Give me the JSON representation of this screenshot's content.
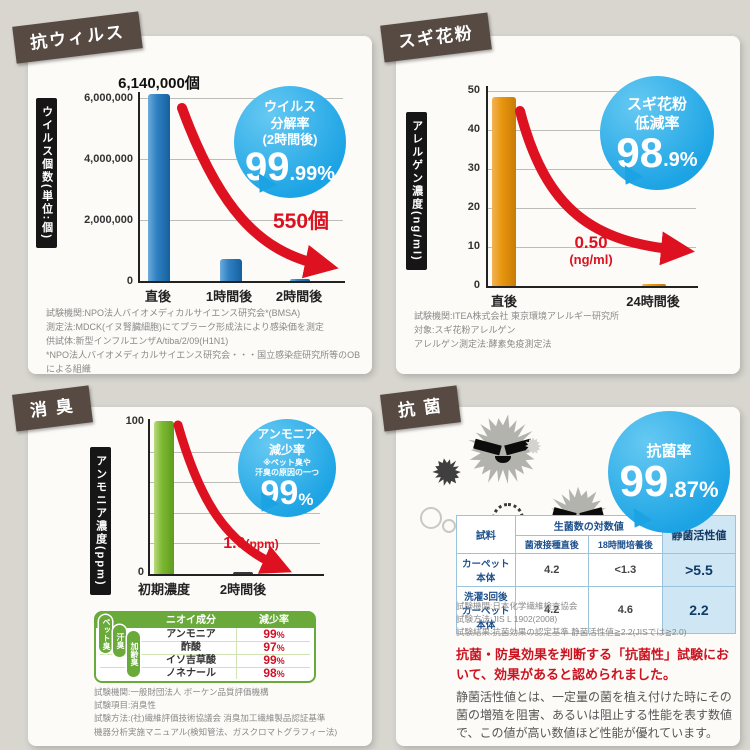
{
  "colors": {
    "accent_blue": "#1ba3e4",
    "arrow_red": "#dd1120",
    "tag_brown": "#574a43",
    "bar_blue": "#2f80c2",
    "bar_orange": "#e8960e",
    "bar_green": "#7db832",
    "table_green": "#6aaa3a"
  },
  "cards": {
    "av": {
      "tag": "抗ウィルス",
      "ylabel": "ウイルス個数(単位:個)",
      "yticks": [
        "6,000,000",
        "4,000,000",
        "2,000,000",
        "0"
      ],
      "bar_label": "6,140,000個",
      "x1": "直後",
      "x2": "1時間後",
      "x3": "2時間後",
      "arrow_label": "550個",
      "bubble": {
        "l1": "ウイルス",
        "l2": "分解率",
        "l3": "(2時間後)",
        "big": "99",
        "small": ".99%"
      },
      "notes": [
        "試験機関:NPO法人バイオメディカルサイエンス研究会*(BMSA)",
        "測定法:MDCK(イヌ腎臓細胞)にてプラーク形成法により感染価を測定",
        "供試体:新型インフルエンザA/tiba/2/09(H1N1)",
        "*NPO法人バイオメディカルサイエンス研究会・・・国立感染症研究所等のOBによる組織"
      ]
    },
    "po": {
      "tag": "スギ花粉",
      "ylabel": "アレルゲン濃度(ng/ml)",
      "yticks": [
        "50",
        "40",
        "30",
        "20",
        "10",
        "0"
      ],
      "x1": "直後",
      "x2": "24時間後",
      "ann1": "0.50",
      "ann2": "(ng/ml)",
      "bubble": {
        "l1": "スギ花粉",
        "l2": "低減率",
        "big": "98",
        "small": ".9%"
      },
      "notes": [
        "試験機関:ITEA株式会社 東京環境アレルギー研究所",
        "対象:スギ花粉アレルゲン",
        "アレルゲン測定法:酵素免疫測定法"
      ]
    },
    "od": {
      "tag": "消 臭",
      "ylabel": "アンモニア濃度(ppm)",
      "ytick_top": "100",
      "ytick_bottom": "0",
      "x1": "初期濃度",
      "x2": "2時間後",
      "ann1": "1.0",
      "ann2": "(ppm)",
      "bubble": {
        "l1": "アンモニア",
        "l2": "減少率",
        "t1": "※ペット臭や",
        "t2": "汗臭の原因の一つ",
        "big": "99",
        "small": "%"
      },
      "table": {
        "h_component": "ニオイ成分",
        "h_rate": "減少率",
        "side": [
          "ペット臭",
          "汗臭",
          "加齢臭"
        ],
        "rows": [
          {
            "name": "アンモニア",
            "pct": "99"
          },
          {
            "name": "酢酸",
            "pct": "97"
          },
          {
            "name": "イソ吉草酸",
            "pct": "99"
          },
          {
            "name": "ノネナール",
            "pct": "98"
          }
        ],
        "pct_suffix": "%"
      },
      "notes": [
        "試験機関:一般財団法人 ボーケン品質評価機構",
        "試験項目:消臭性",
        "試験方法:(社)繊維評価技術協議会 消臭加工繊維製品認証基準",
        "機器分析実施マニュアル(検知管法、ガスクロマトグラフィー法)"
      ]
    },
    "ab": {
      "tag": "抗 菌",
      "bubble": {
        "l1": "抗菌率",
        "big": "99",
        "small": ".87%"
      },
      "table": {
        "c_sample": "試料",
        "c_group": "生菌数の対数値",
        "c_sub1": "菌液接種直後",
        "c_sub2": "18時間培養後",
        "c_activity": "静菌活性値",
        "rows": [
          {
            "label": "カーペット本体",
            "v1": "4.2",
            "v2": "<1.3",
            "v3": ">5.5"
          },
          {
            "label": "洗濯3回後 カーペット本体",
            "v1": "4.2",
            "v2": "4.6",
            "v3": "2.2"
          }
        ]
      },
      "notes": [
        "試験機関:日本化学繊維検査協会",
        "試験方法:JIS L 1902(2008)",
        "試験結果:抗菌効果の認定基準 静菌活性値≧2.2(JISでは≧2.0)"
      ],
      "statement": "抗菌・防臭効果を判断する「抗菌性」試験において、効果があると認められました。",
      "desc": "静菌活性値とは、一定量の菌を植え付けた時にその菌の増殖を阻害、あるいは阻止する性能を表す数値で、この値が高い数値ほど性能が優れています。"
    }
  },
  "chart_data": [
    {
      "type": "bar",
      "title": "抗ウィルス",
      "categories": [
        "直後",
        "1時間後",
        "2時間後"
      ],
      "values": [
        6140000,
        700000,
        550
      ],
      "ylabel": "ウイルス個数(単位:個)",
      "ylim": [
        0,
        6500000
      ],
      "grid": true,
      "annotations": [
        "6,140,000個",
        "550個",
        "ウイルス分解率(2時間後) 99.99%"
      ]
    },
    {
      "type": "bar",
      "title": "スギ花粉",
      "categories": [
        "直後",
        "24時間後"
      ],
      "values": [
        48.5,
        0.5
      ],
      "ylabel": "アレルゲン濃度(ng/ml)",
      "ylim": [
        0,
        50
      ],
      "grid": true,
      "annotations": [
        "0.50(ng/ml)",
        "スギ花粉低減率 98.9%"
      ]
    },
    {
      "type": "bar",
      "title": "消臭",
      "categories": [
        "初期濃度",
        "2時間後"
      ],
      "values": [
        100,
        1.0
      ],
      "ylabel": "アンモニア濃度(ppm)",
      "ylim": [
        0,
        100
      ],
      "grid": true,
      "annotations": [
        "1.0(ppm)",
        "アンモニア減少率 99%"
      ]
    },
    {
      "type": "table",
      "title": "抗菌",
      "columns": [
        "試料",
        "菌液接種直後",
        "18時間培養後",
        "静菌活性値"
      ],
      "rows": [
        [
          "カーペット本体",
          "4.2",
          "<1.3",
          ">5.5"
        ],
        [
          "洗濯3回後カーペット本体",
          "4.2",
          "4.6",
          "2.2"
        ]
      ],
      "annotations": [
        "抗菌率 99.87%"
      ]
    }
  ]
}
